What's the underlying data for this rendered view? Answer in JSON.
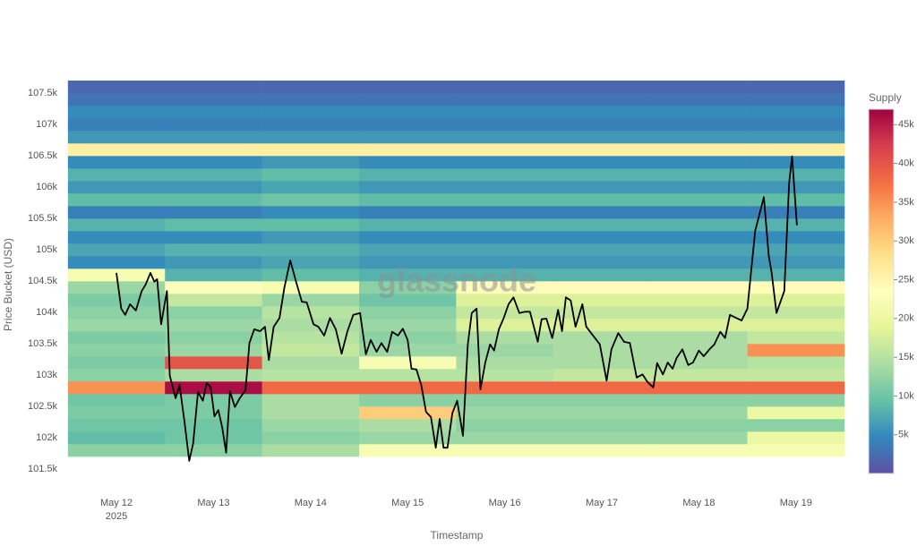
{
  "chart_data": {
    "type": "heatmap",
    "watermark": "glassnode",
    "xlabel": "Timestamp",
    "ylabel": "Price Bucket (USD)",
    "colorbar_title": "Supply",
    "x_year_label": "2025",
    "xlim": [
      -0.55,
      7.5
    ],
    "xticks": [
      {
        "value": 0,
        "label": "May 12"
      },
      {
        "value": 1,
        "label": "May 13"
      },
      {
        "value": 2,
        "label": "May 14"
      },
      {
        "value": 3,
        "label": "May 15"
      },
      {
        "value": 4,
        "label": "May 16"
      },
      {
        "value": 5,
        "label": "May 17"
      },
      {
        "value": 6,
        "label": "May 18"
      },
      {
        "value": 7,
        "label": "May 19"
      }
    ],
    "ylim": [
      101400,
      107700
    ],
    "yticks": [
      {
        "value": 101500,
        "label": "101.5k"
      },
      {
        "value": 102000,
        "label": "102k"
      },
      {
        "value": 102500,
        "label": "102.5k"
      },
      {
        "value": 103000,
        "label": "103k"
      },
      {
        "value": 103500,
        "label": "103.5k"
      },
      {
        "value": 104000,
        "label": "104k"
      },
      {
        "value": 104500,
        "label": "104.5k"
      },
      {
        "value": 105000,
        "label": "105k"
      },
      {
        "value": 105500,
        "label": "105.5k"
      },
      {
        "value": 106000,
        "label": "106k"
      },
      {
        "value": 106500,
        "label": "106.5k"
      },
      {
        "value": 107000,
        "label": "107k"
      },
      {
        "value": 107500,
        "label": "107.5k"
      }
    ],
    "zlim": [
      0,
      47000
    ],
    "zticks": [
      {
        "value": 5000,
        "label": "5k"
      },
      {
        "value": 10000,
        "label": "10k"
      },
      {
        "value": 15000,
        "label": "15k"
      },
      {
        "value": 20000,
        "label": "20k"
      },
      {
        "value": 25000,
        "label": "25k"
      },
      {
        "value": 30000,
        "label": "30k"
      },
      {
        "value": 35000,
        "label": "35k"
      },
      {
        "value": 40000,
        "label": "40k"
      },
      {
        "value": 45000,
        "label": "45k"
      }
    ],
    "colorscale": [
      "#5e4fa2",
      "#3288bd",
      "#66c2a5",
      "#abdda4",
      "#e6f598",
      "#ffffbf",
      "#fee08b",
      "#fdae61",
      "#f46d43",
      "#d53e4f",
      "#9e0142"
    ],
    "x_bins": [
      -0.5,
      0.5,
      1.5,
      2.5,
      3.5,
      4.5,
      5.5,
      6.5,
      7.5
    ],
    "y_bins": [
      101700,
      101900,
      102100,
      102300,
      102500,
      102700,
      102900,
      103100,
      103300,
      103500,
      103700,
      103900,
      104100,
      104300,
      104500,
      104700,
      104900,
      105100,
      105300,
      105500,
      105700,
      105900,
      106100,
      106300,
      106500,
      106700,
      106900,
      107100,
      107300,
      107500,
      107700
    ],
    "z": [
      [
        12000,
        12000,
        14000,
        22000,
        22000,
        22000,
        22000,
        22000
      ],
      [
        9000,
        10000,
        12000,
        13000,
        13000,
        13000,
        13000,
        20000
      ],
      [
        10000,
        10000,
        13000,
        14000,
        12000,
        12000,
        12000,
        12000
      ],
      [
        11000,
        11000,
        14000,
        30000,
        13000,
        13000,
        13000,
        20000
      ],
      [
        10000,
        11000,
        14000,
        12000,
        12000,
        12000,
        12000,
        12000
      ],
      [
        35000,
        46000,
        38000,
        38000,
        38000,
        38000,
        38000,
        38000
      ],
      [
        12000,
        14000,
        15000,
        15000,
        15000,
        16000,
        16000,
        16000
      ],
      [
        11000,
        40000,
        14000,
        22000,
        14000,
        14000,
        14000,
        15000
      ],
      [
        12000,
        13000,
        16000,
        13000,
        13000,
        14000,
        14000,
        35000
      ],
      [
        11000,
        12000,
        15000,
        12000,
        14000,
        14000,
        14000,
        16000
      ],
      [
        13000,
        13000,
        14000,
        13000,
        18000,
        18000,
        18000,
        18000
      ],
      [
        12000,
        12000,
        15000,
        12000,
        16000,
        16000,
        16000,
        16000
      ],
      [
        11000,
        16000,
        13000,
        10000,
        18000,
        18000,
        18000,
        18000
      ],
      [
        13000,
        23000,
        22000,
        12000,
        24000,
        24000,
        24000,
        24000
      ],
      [
        22000,
        8000,
        9000,
        8000,
        8000,
        8000,
        8000,
        8000
      ],
      [
        5000,
        6000,
        7000,
        6000,
        6000,
        6000,
        6000,
        6000
      ],
      [
        7000,
        8000,
        8000,
        7000,
        7000,
        7000,
        7000,
        7000
      ],
      [
        5000,
        5000,
        6000,
        5000,
        5000,
        5000,
        5000,
        5000
      ],
      [
        8000,
        9000,
        9000,
        8000,
        8000,
        8000,
        8000,
        8000
      ],
      [
        4000,
        4000,
        5000,
        4000,
        4000,
        4000,
        4000,
        4000
      ],
      [
        9000,
        9000,
        10000,
        9000,
        9000,
        9000,
        9000,
        9000
      ],
      [
        6000,
        6000,
        7000,
        6000,
        6000,
        6000,
        6000,
        6000
      ],
      [
        8000,
        8000,
        9000,
        8000,
        8000,
        8000,
        8000,
        8000
      ],
      [
        5000,
        5000,
        6000,
        5000,
        5000,
        5000,
        5000,
        5000
      ],
      [
        26000,
        26000,
        26000,
        26000,
        26000,
        26000,
        26000,
        26000
      ],
      [
        6000,
        6000,
        6000,
        6000,
        6000,
        6000,
        6000,
        6000
      ],
      [
        4000,
        4000,
        4000,
        4000,
        4000,
        4000,
        4000,
        4000
      ],
      [
        5000,
        5000,
        5000,
        5000,
        5000,
        5000,
        5000,
        5000
      ],
      [
        3000,
        3000,
        3000,
        3000,
        3000,
        3000,
        3000,
        3000
      ],
      [
        2000,
        2000,
        2000,
        2000,
        2000,
        2000,
        2000,
        2000
      ]
    ],
    "line": {
      "color": "#000000",
      "x": [
        0,
        0.05,
        0.09,
        0.14,
        0.2,
        0.26,
        0.3,
        0.35,
        0.39,
        0.42,
        0.46,
        0.52,
        0.55,
        0.61,
        0.65,
        0.7,
        0.75,
        0.79,
        0.84,
        0.89,
        0.93,
        0.97,
        1.01,
        1.05,
        1.09,
        1.13,
        1.17,
        1.22,
        1.27,
        1.33,
        1.37,
        1.42,
        1.48,
        1.53,
        1.57,
        1.62,
        1.68,
        1.73,
        1.79,
        1.85,
        1.91,
        1.96,
        2.03,
        2.08,
        2.14,
        2.2,
        2.26,
        2.32,
        2.38,
        2.44,
        2.51,
        2.57,
        2.62,
        2.68,
        2.73,
        2.79,
        2.84,
        2.9,
        2.95,
        3.0,
        3.04,
        3.09,
        3.14,
        3.19,
        3.24,
        3.29,
        3.33,
        3.37,
        3.41,
        3.46,
        3.51,
        3.57,
        3.62,
        3.66,
        3.71,
        3.75,
        3.8,
        3.85,
        3.89,
        3.94,
        3.99,
        4.04,
        4.09,
        4.15,
        4.21,
        4.26,
        4.34,
        4.38,
        4.43,
        4.49,
        4.55,
        4.59,
        4.63,
        4.68,
        4.73,
        4.8,
        4.84,
        4.91,
        4.98,
        5.05,
        5.1,
        5.17,
        5.23,
        5.29,
        5.36,
        5.42,
        5.47,
        5.53,
        5.57,
        5.63,
        5.68,
        5.73,
        5.77,
        5.83,
        5.89,
        5.94,
        6.0,
        6.05,
        6.11,
        6.16,
        6.22,
        6.27,
        6.32,
        6.44,
        6.5,
        6.58,
        6.67,
        6.72,
        6.75,
        6.8,
        6.88,
        6.93,
        6.96,
        7.01
      ],
      "values": [
        104630,
        104060,
        103960,
        104130,
        104030,
        104340,
        104440,
        104630,
        104490,
        104530,
        103810,
        104340,
        102990,
        102630,
        102840,
        102270,
        101630,
        101910,
        102730,
        102590,
        102870,
        102810,
        102340,
        102440,
        102160,
        101760,
        102740,
        102490,
        102630,
        102760,
        103510,
        103730,
        103700,
        103770,
        103240,
        103770,
        103910,
        104390,
        104830,
        104490,
        104170,
        104160,
        103810,
        103770,
        103630,
        103910,
        103730,
        103340,
        103700,
        103960,
        103990,
        103330,
        103560,
        103370,
        103510,
        103370,
        103690,
        103630,
        103740,
        103560,
        103100,
        103090,
        102840,
        102410,
        102330,
        101840,
        102300,
        101840,
        101840,
        102390,
        102590,
        102030,
        103490,
        103990,
        104060,
        102770,
        103200,
        103490,
        103390,
        103730,
        103910,
        104130,
        104240,
        103990,
        104010,
        104010,
        103530,
        103890,
        103900,
        103590,
        104040,
        103700,
        104240,
        104190,
        103770,
        104130,
        103770,
        103630,
        103490,
        102910,
        103410,
        103670,
        103530,
        103510,
        102960,
        103010,
        102890,
        102800,
        103190,
        103010,
        103200,
        103100,
        103270,
        103410,
        103160,
        103200,
        103390,
        103300,
        103410,
        103490,
        103690,
        103590,
        103960,
        103870,
        104060,
        105300,
        105840,
        104910,
        104630,
        103990,
        104340,
        106060,
        106490,
        105390
      ]
    }
  }
}
